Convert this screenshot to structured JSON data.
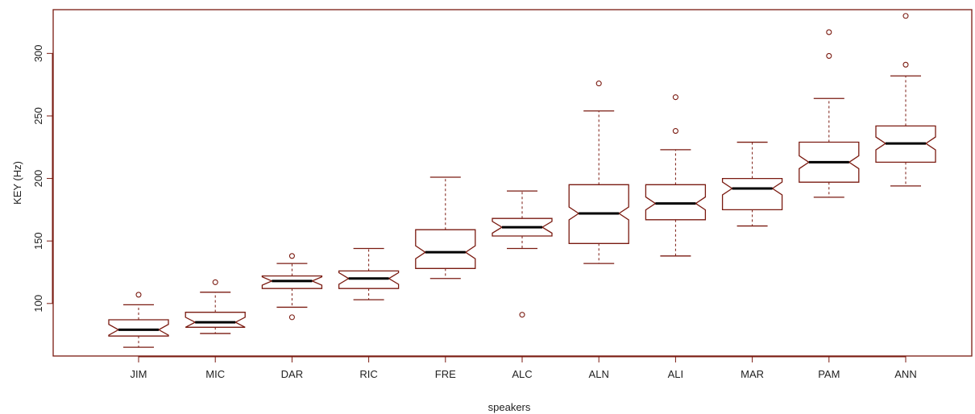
{
  "chart_data": {
    "type": "boxplot",
    "notched": true,
    "xlabel": "speakers",
    "ylabel": "KEY (Hz)",
    "ylim": [
      58,
      335
    ],
    "yticks": [
      100,
      150,
      200,
      250,
      300
    ],
    "colors": {
      "frame": "#7a1a10",
      "box": "#7a1a10",
      "median": "#000000",
      "text": "#222222"
    },
    "categories": [
      "JIM",
      "MIC",
      "DAR",
      "RIC",
      "FRE",
      "ALC",
      "ALN",
      "ALI",
      "MAR",
      "PAM",
      "ANN"
    ],
    "series": [
      {
        "category": "JIM",
        "whisker_low": 65,
        "q1": 74,
        "median": 79,
        "q3": 87,
        "whisker_high": 99,
        "outliers": [
          107
        ]
      },
      {
        "category": "MIC",
        "whisker_low": 76,
        "q1": 81,
        "median": 85,
        "q3": 93,
        "whisker_high": 109,
        "outliers": [
          117
        ]
      },
      {
        "category": "DAR",
        "whisker_low": 97,
        "q1": 112,
        "median": 118,
        "q3": 122,
        "whisker_high": 132,
        "outliers": [
          89,
          138
        ]
      },
      {
        "category": "RIC",
        "whisker_low": 103,
        "q1": 112,
        "median": 120,
        "q3": 126,
        "whisker_high": 144,
        "outliers": []
      },
      {
        "category": "FRE",
        "whisker_low": 120,
        "q1": 128,
        "median": 141,
        "q3": 159,
        "whisker_high": 201,
        "outliers": []
      },
      {
        "category": "ALC",
        "whisker_low": 144,
        "q1": 154,
        "median": 161,
        "q3": 168,
        "whisker_high": 190,
        "outliers": [
          91
        ]
      },
      {
        "category": "ALN",
        "whisker_low": 132,
        "q1": 148,
        "median": 172,
        "q3": 195,
        "whisker_high": 254,
        "outliers": [
          276
        ]
      },
      {
        "category": "ALI",
        "whisker_low": 138,
        "q1": 167,
        "median": 180,
        "q3": 195,
        "whisker_high": 223,
        "outliers": [
          238,
          265
        ]
      },
      {
        "category": "MAR",
        "whisker_low": 162,
        "q1": 175,
        "median": 192,
        "q3": 200,
        "whisker_high": 229,
        "outliers": []
      },
      {
        "category": "PAM",
        "whisker_low": 185,
        "q1": 197,
        "median": 213,
        "q3": 229,
        "whisker_high": 264,
        "outliers": [
          298,
          317
        ]
      },
      {
        "category": "ANN",
        "whisker_low": 194,
        "q1": 213,
        "median": 228,
        "q3": 242,
        "whisker_high": 282,
        "outliers": [
          291,
          330
        ]
      }
    ]
  }
}
